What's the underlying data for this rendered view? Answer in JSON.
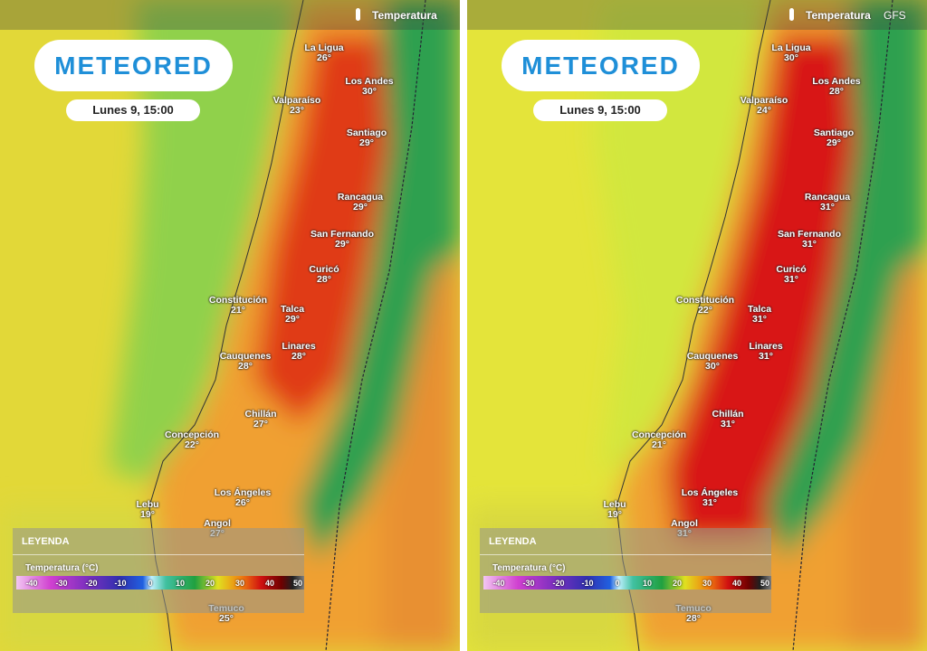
{
  "panels": [
    {
      "header": {
        "label": "Temperatura"
      },
      "logo": "METEORED",
      "date": "Lunes 9, 15:00",
      "cities": [
        {
          "name": "La Ligua",
          "temp": "26°"
        },
        {
          "name": "Los Andes",
          "temp": "30°"
        },
        {
          "name": "Valparaíso",
          "temp": "23°"
        },
        {
          "name": "Santiago",
          "temp": "29°"
        },
        {
          "name": "Rancagua",
          "temp": "29°"
        },
        {
          "name": "San Fernando",
          "temp": "29°"
        },
        {
          "name": "Curicó",
          "temp": "28°"
        },
        {
          "name": "Constitución",
          "temp": "21°"
        },
        {
          "name": "Talca",
          "temp": "29°"
        },
        {
          "name": "Linares",
          "temp": "28°"
        },
        {
          "name": "Cauquenes",
          "temp": "28°"
        },
        {
          "name": "Chillán",
          "temp": "27°"
        },
        {
          "name": "Concepción",
          "temp": "22°"
        },
        {
          "name": "Los Ángeles",
          "temp": "26°"
        },
        {
          "name": "Lebu",
          "temp": "19°"
        },
        {
          "name": "Angol",
          "temp": "27°"
        },
        {
          "name": "Temuco",
          "temp": "25°"
        }
      ],
      "legend": {
        "title": "LEYENDA",
        "scale_title": "Temperatura (°C)",
        "ticks": [
          -40,
          -30,
          -20,
          -10,
          0,
          10,
          20,
          30,
          40,
          50
        ]
      }
    },
    {
      "header": {
        "label": "Temperatura",
        "model": "GFS"
      },
      "logo": "METEORED",
      "date": "Lunes 9, 15:00",
      "cities": [
        {
          "name": "La Ligua",
          "temp": "30°"
        },
        {
          "name": "Los Andes",
          "temp": "28°"
        },
        {
          "name": "Valparaíso",
          "temp": "24°"
        },
        {
          "name": "Santiago",
          "temp": "29°"
        },
        {
          "name": "Rancagua",
          "temp": "31°"
        },
        {
          "name": "San Fernando",
          "temp": "31°"
        },
        {
          "name": "Curicó",
          "temp": "31°"
        },
        {
          "name": "Constitución",
          "temp": "22°"
        },
        {
          "name": "Talca",
          "temp": "31°"
        },
        {
          "name": "Linares",
          "temp": "31°"
        },
        {
          "name": "Cauquenes",
          "temp": "30°"
        },
        {
          "name": "Chillán",
          "temp": "31°"
        },
        {
          "name": "Concepción",
          "temp": "21°"
        },
        {
          "name": "Los Ángeles",
          "temp": "31°"
        },
        {
          "name": "Lebu",
          "temp": "19°"
        },
        {
          "name": "Angol",
          "temp": "31°"
        },
        {
          "name": "Temuco",
          "temp": "28°"
        }
      ],
      "legend": {
        "title": "LEYENDA",
        "scale_title": "Temperatura (°C)",
        "ticks": [
          -40,
          -30,
          -20,
          -10,
          0,
          10,
          20,
          30,
          40,
          50
        ]
      }
    }
  ]
}
